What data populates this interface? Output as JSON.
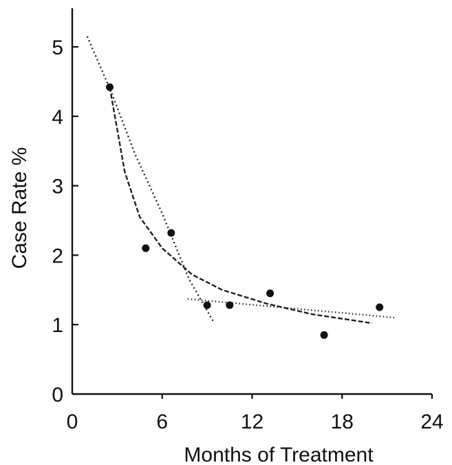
{
  "chart_data": {
    "type": "scatter",
    "title": "",
    "xlabel": "Months of Treatment",
    "ylabel": "Case Rate %",
    "xlim": [
      0,
      24
    ],
    "ylim": [
      0,
      5.5
    ],
    "xticks": [
      0,
      6,
      12,
      18,
      24
    ],
    "yticks": [
      0,
      1,
      2,
      3,
      4,
      5
    ],
    "grid": false,
    "points": [
      {
        "x": 2.5,
        "y": 4.42
      },
      {
        "x": 4.9,
        "y": 2.1
      },
      {
        "x": 6.6,
        "y": 2.32
      },
      {
        "x": 9.0,
        "y": 1.28
      },
      {
        "x": 10.5,
        "y": 1.28
      },
      {
        "x": 13.2,
        "y": 1.45
      },
      {
        "x": 16.8,
        "y": 0.85
      },
      {
        "x": 20.5,
        "y": 1.25
      }
    ],
    "trend_lines": [
      {
        "style": "dotted",
        "x": [
          1.0,
          2.6,
          4.2,
          6.0,
          7.8,
          9.4
        ],
        "y": [
          5.15,
          4.35,
          3.45,
          2.6,
          1.65,
          1.05
        ]
      },
      {
        "style": "dashed",
        "x": [
          2.5,
          3.5,
          4.5,
          6.0,
          8.0,
          10.0,
          13.0,
          16.0,
          20.0
        ],
        "y": [
          4.42,
          3.2,
          2.55,
          2.1,
          1.72,
          1.5,
          1.3,
          1.15,
          1.02
        ]
      },
      {
        "style": "fine",
        "x": [
          7.7,
          21.5
        ],
        "y": [
          1.37,
          1.1
        ]
      }
    ]
  }
}
